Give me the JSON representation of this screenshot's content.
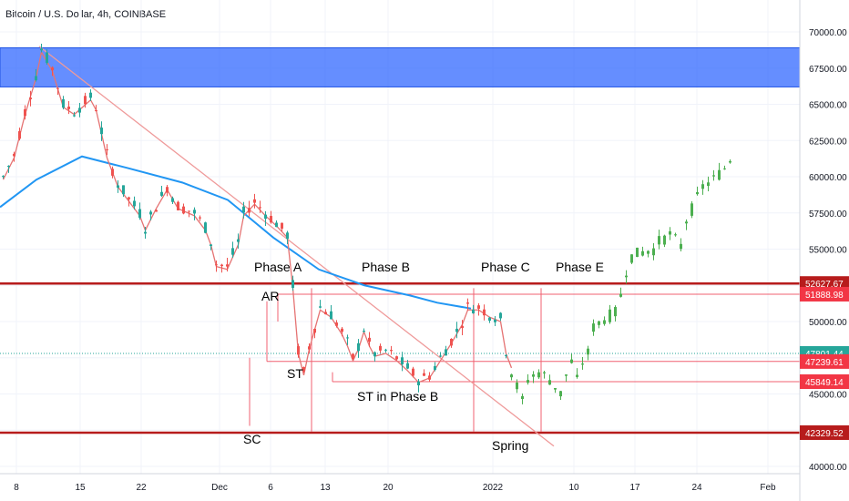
{
  "header": {
    "title": "Bitcoin / U.S. Dollar, 4h, COINBASE"
  },
  "chart_data": {
    "type": "candlestick",
    "title": "Bitcoin / U.S. Dollar, 4h, COINBASE",
    "ylim": [
      39500,
      71500
    ],
    "y_ticks": [
      "70000.00",
      "67500.00",
      "65000.00",
      "62500.00",
      "60000.00",
      "57500.00",
      "55000.00",
      "50000.00",
      "45000.00",
      "40000.00"
    ],
    "x_ticks": [
      "8",
      "15",
      "22",
      "Dec",
      "6",
      "13",
      "20",
      "2022",
      "10",
      "17",
      "24",
      "Feb"
    ],
    "price_tags": [
      {
        "label": "52627.67",
        "value": 52627.67,
        "color": "#b71c1c"
      },
      {
        "label": "51888.98",
        "value": 51888.98,
        "color": "#f23645"
      },
      {
        "label": "47801.44",
        "value": 47801.44,
        "color": "#26a69a"
      },
      {
        "label": "47239.61",
        "value": 47239.61,
        "color": "#f23645"
      },
      {
        "label": "45849.14",
        "value": 45849.14,
        "color": "#f23645"
      },
      {
        "label": "42329.52",
        "value": 42329.52,
        "color": "#b71c1c"
      }
    ],
    "annotations": [
      "Phase A",
      "Phase B",
      "Phase C",
      "Phase E",
      "AR",
      "ST",
      "ST in Phase B",
      "SC",
      "Spring"
    ],
    "zone": {
      "from": 66200,
      "to": 68900,
      "color": "#2962ff"
    },
    "support_resistance": [
      52627.67,
      42329.52
    ],
    "colors": {
      "up": "#26a69a",
      "down": "#ef5350",
      "projection": "#4caf50",
      "ma_long": "#2196f3",
      "ma_short": "#e57373",
      "trend": "#ef9a9a"
    },
    "price_path": [
      [
        0,
        60000
      ],
      [
        2,
        61500
      ],
      [
        4,
        64500
      ],
      [
        6,
        67000
      ],
      [
        7,
        68800
      ],
      [
        9,
        67500
      ],
      [
        11,
        65000
      ],
      [
        13,
        64500
      ],
      [
        16,
        65500
      ],
      [
        17,
        64800
      ],
      [
        19,
        61500
      ],
      [
        21,
        59500
      ],
      [
        23,
        58500
      ],
      [
        25,
        57500
      ],
      [
        26,
        56500
      ],
      [
        28,
        58000
      ],
      [
        30,
        59300
      ],
      [
        32,
        58000
      ],
      [
        35,
        57500
      ],
      [
        37,
        56500
      ],
      [
        38,
        55500
      ],
      [
        39,
        54000
      ],
      [
        41,
        53800
      ],
      [
        43,
        55500
      ],
      [
        44,
        57500
      ],
      [
        46,
        58300
      ],
      [
        48,
        57500
      ],
      [
        50,
        56800
      ],
      [
        52,
        56000
      ],
      [
        53,
        52500
      ],
      [
        54,
        48000
      ],
      [
        55,
        46500
      ],
      [
        56,
        48300
      ],
      [
        58,
        51000
      ],
      [
        60,
        50500
      ],
      [
        62,
        49300
      ],
      [
        63,
        48500
      ],
      [
        64,
        47500
      ],
      [
        65,
        48300
      ],
      [
        66,
        49500
      ],
      [
        67,
        48500
      ],
      [
        68,
        47800
      ],
      [
        70,
        48000
      ],
      [
        72,
        47500
      ],
      [
        74,
        46800
      ],
      [
        76,
        46000
      ],
      [
        78,
        46300
      ],
      [
        80,
        47500
      ],
      [
        82,
        48700
      ],
      [
        84,
        50000
      ],
      [
        85,
        51000
      ],
      [
        87,
        51000
      ],
      [
        89,
        50500
      ],
      [
        91,
        50200
      ],
      [
        92,
        48000
      ],
      [
        93,
        47000
      ]
    ],
    "projection_path": [
      [
        93,
        46500
      ],
      [
        94,
        45500
      ],
      [
        95,
        44500
      ],
      [
        96,
        46000
      ],
      [
        98,
        46500
      ],
      [
        100,
        46000
      ],
      [
        102,
        45000
      ],
      [
        103,
        46300
      ],
      [
        104,
        47200
      ],
      [
        105,
        45900
      ],
      [
        106,
        47200
      ],
      [
        107,
        47800
      ],
      [
        108,
        49600
      ],
      [
        110,
        50200
      ],
      [
        112,
        50600
      ],
      [
        113,
        51800
      ],
      [
        114,
        53500
      ],
      [
        115,
        54500
      ],
      [
        117,
        54800
      ],
      [
        119,
        55000
      ],
      [
        120,
        55500
      ],
      [
        122,
        56000
      ],
      [
        124,
        55200
      ],
      [
        125,
        57000
      ],
      [
        127,
        58500
      ],
      [
        128,
        59300
      ],
      [
        130,
        59800
      ],
      [
        132,
        60600
      ],
      [
        133,
        61200
      ],
      [
        134,
        63500
      ]
    ]
  }
}
